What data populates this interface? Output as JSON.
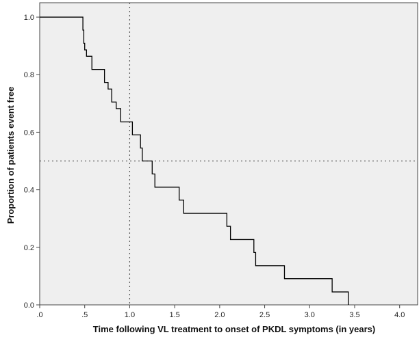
{
  "chart_data": {
    "type": "line",
    "subtype": "kaplan-meier-step",
    "title": "",
    "xlabel": "Time following VL treatment to onset of  PKDL symptoms (in years)",
    "ylabel": "Proportion of patients event free",
    "xlim": [
      0,
      4.2
    ],
    "ylim": [
      0,
      1.05
    ],
    "x_ticks": [
      0,
      0.5,
      1.0,
      1.5,
      2.0,
      2.5,
      3.0,
      3.5,
      4.0
    ],
    "x_tick_labels": [
      ".0",
      ".5",
      "1.0",
      "1.5",
      "2.0",
      "2.5",
      "3.0",
      "3.5",
      "4.0"
    ],
    "y_ticks": [
      0,
      0.2,
      0.4,
      0.6,
      0.8,
      1.0
    ],
    "y_tick_labels": [
      "0.0",
      "0.2",
      "0.4",
      "0.6",
      "0.8",
      "1.0"
    ],
    "grid": false,
    "background_color": "#efefef",
    "line_color": "#000000",
    "reference_lines": {
      "horizontal_y": 0.5,
      "vertical_x": 1.0,
      "style": "dotted"
    },
    "series": [
      {
        "x": [
          0.0,
          0.48,
          0.49,
          0.5,
          0.52,
          0.58,
          0.72,
          0.76,
          0.8,
          0.85,
          0.9,
          1.03,
          1.12,
          1.14,
          1.25,
          1.28,
          1.55,
          1.6,
          2.08,
          2.12,
          2.38,
          2.4,
          2.72,
          3.25,
          3.43
        ],
        "y": [
          1.0,
          0.955,
          0.909,
          0.886,
          0.864,
          0.818,
          0.773,
          0.75,
          0.705,
          0.682,
          0.636,
          0.591,
          0.545,
          0.5,
          0.455,
          0.409,
          0.364,
          0.318,
          0.273,
          0.227,
          0.182,
          0.136,
          0.091,
          0.045,
          0.0
        ]
      }
    ]
  }
}
